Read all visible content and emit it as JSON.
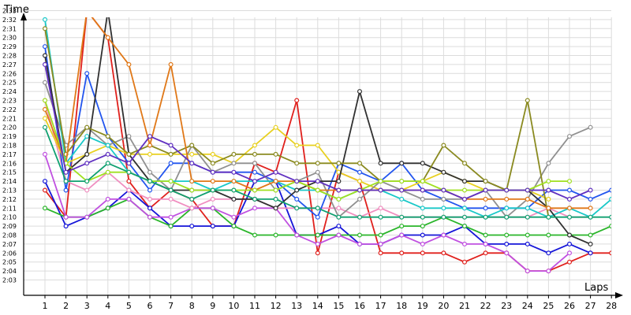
{
  "chart_data": {
    "type": "line",
    "ylabel": "Time",
    "xlabel": "Laps",
    "x": [
      1,
      2,
      3,
      4,
      5,
      6,
      7,
      8,
      9,
      10,
      11,
      12,
      13,
      14,
      15,
      16,
      17,
      18,
      19,
      20,
      21,
      22,
      23,
      24,
      25,
      26,
      27,
      28
    ],
    "x_ticks": [
      "1",
      "2",
      "3",
      "4",
      "5",
      "6",
      "7",
      "8",
      "9",
      "10",
      "11",
      "12",
      "13",
      "14",
      "15",
      "16",
      "17",
      "18",
      "19",
      "20",
      "21",
      "22",
      "23",
      "24",
      "25",
      "26",
      "27",
      "28"
    ],
    "y_ticks": [
      "2:03",
      "2:04",
      "2:05",
      "2:06",
      "2:07",
      "2:08",
      "2:09",
      "2:10",
      "2:11",
      "2:12",
      "2:13",
      "2:14",
      "2:15",
      "2:16",
      "2:17",
      "2:18",
      "2:19",
      "2:20",
      "2:21",
      "2:22",
      "2:23",
      "2:24",
      "2:25",
      "2:26",
      "2:27",
      "2:28",
      "2:29",
      "2:30",
      "2:31",
      "2:32",
      "2:33"
    ],
    "ylim_seconds": [
      122,
      155
    ],
    "y_units": "seconds (lap time)",
    "grid": true,
    "series": [
      {
        "color": "#e0201c",
        "values": [
          133,
          130,
          153,
          150,
          134,
          131,
          133,
          132,
          129,
          129,
          136,
          135,
          143,
          126,
          135,
          134,
          126,
          126,
          126,
          126,
          125,
          126,
          126,
          124,
          124,
          125,
          126,
          126
        ]
      },
      {
        "color": "#1515d8",
        "values": [
          134,
          129,
          130,
          131,
          133,
          131,
          129,
          129,
          129,
          129,
          134,
          134,
          128,
          128,
          129,
          127,
          127,
          128,
          128,
          128,
          129,
          127,
          127,
          127,
          126,
          127,
          126,
          null
        ]
      },
      {
        "color": "#2ab52a",
        "values": [
          131,
          130,
          130,
          131,
          132,
          130,
          129,
          131,
          131,
          129,
          128,
          128,
          128,
          128,
          128,
          128,
          128,
          129,
          129,
          130,
          129,
          128,
          128,
          128,
          128,
          128,
          128,
          129
        ]
      },
      {
        "color": "#c050e0",
        "values": [
          137,
          130,
          130,
          132,
          132,
          130,
          130,
          131,
          131,
          130,
          131,
          131,
          128,
          127,
          128,
          127,
          127,
          128,
          127,
          128,
          127,
          127,
          126,
          124,
          124,
          126,
          null,
          null
        ]
      },
      {
        "color": "#f08ec0",
        "values": [
          143,
          134,
          133,
          135,
          133,
          132,
          132,
          131,
          132,
          132,
          132,
          131,
          131,
          131,
          131,
          130,
          131,
          130,
          130,
          130,
          130,
          130,
          130,
          130,
          131,
          130,
          130,
          null
        ]
      },
      {
        "color": "#2255ee",
        "values": [
          149,
          133,
          146,
          139,
          136,
          133,
          136,
          136,
          135,
          135,
          135,
          134,
          132,
          130,
          136,
          135,
          134,
          136,
          133,
          132,
          131,
          131,
          131,
          131,
          133,
          133,
          132,
          133
        ]
      },
      {
        "color": "#e8d020",
        "values": [
          141,
          136,
          137,
          138,
          137,
          137,
          137,
          137,
          137,
          136,
          138,
          140,
          138,
          138,
          135,
          134,
          133,
          133,
          134,
          135,
          134,
          133,
          133,
          133,
          132,
          null,
          null,
          null
        ]
      },
      {
        "color": "#909090",
        "values": [
          145,
          138,
          140,
          138,
          139,
          135,
          133,
          138,
          135,
          136,
          136,
          133,
          134,
          135,
          130,
          132,
          134,
          133,
          132,
          132,
          132,
          133,
          130,
          132,
          136,
          139,
          140,
          null
        ]
      },
      {
        "color": "#19c8c8",
        "values": [
          152,
          136,
          139,
          138,
          135,
          134,
          134,
          134,
          133,
          134,
          134,
          134,
          133,
          133,
          132,
          133,
          133,
          132,
          131,
          131,
          131,
          130,
          131,
          131,
          130,
          131,
          130,
          132
        ]
      },
      {
        "color": "#303030",
        "values": [
          148,
          135,
          137,
          153,
          137,
          134,
          133,
          133,
          133,
          132,
          132,
          131,
          133,
          134,
          134,
          144,
          136,
          136,
          136,
          135,
          134,
          134,
          133,
          133,
          131,
          128,
          127,
          null
        ]
      },
      {
        "color": "#8a8a20",
        "values": [
          151,
          137,
          140,
          139,
          137,
          138,
          137,
          138,
          136,
          137,
          137,
          137,
          136,
          136,
          136,
          136,
          134,
          134,
          134,
          138,
          136,
          134,
          133,
          143,
          130,
          null,
          null,
          null
        ]
      },
      {
        "color": "#e07818",
        "values": [
          142,
          136,
          153,
          150,
          147,
          138,
          147,
          134,
          134,
          134,
          133,
          134,
          134,
          133,
          133,
          133,
          133,
          133,
          133,
          133,
          132,
          132,
          132,
          132,
          131,
          131,
          131,
          null
        ]
      },
      {
        "color": "#a0e020",
        "values": [
          143,
          136,
          134,
          135,
          135,
          134,
          134,
          133,
          133,
          133,
          133,
          133,
          134,
          133,
          132,
          133,
          134,
          134,
          134,
          133,
          133,
          133,
          133,
          133,
          134,
          134,
          null,
          null
        ]
      },
      {
        "color": "#6030c0",
        "values": [
          147,
          135,
          136,
          137,
          136,
          139,
          138,
          136,
          135,
          135,
          134,
          135,
          134,
          134,
          133,
          133,
          133,
          133,
          133,
          133,
          132,
          133,
          133,
          133,
          133,
          132,
          133,
          null
        ]
      },
      {
        "color": "#10a070",
        "values": [
          140,
          134,
          134,
          136,
          135,
          134,
          133,
          132,
          133,
          133,
          132,
          132,
          131,
          131,
          130,
          130,
          130,
          130,
          130,
          130,
          130,
          130,
          130,
          130,
          130,
          130,
          130,
          130
        ]
      }
    ]
  }
}
